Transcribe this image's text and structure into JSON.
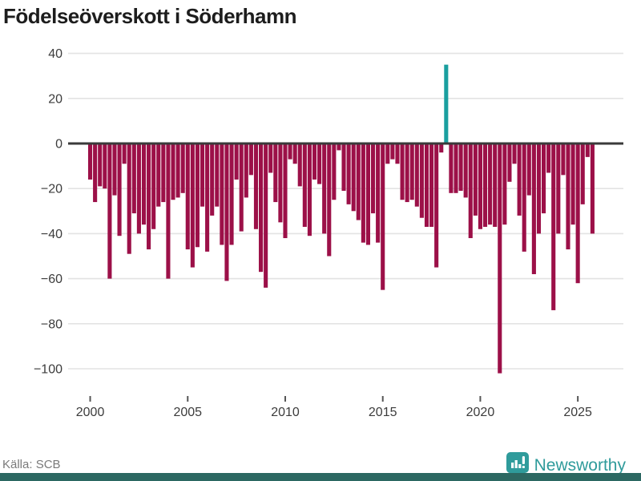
{
  "title": "Födelseöverskott i Söderhamn",
  "source": "Källa: SCB",
  "brand": {
    "name": "Newsworthy"
  },
  "colors": {
    "bar_negative": "#9c1048",
    "bar_positive": "#1a9f9f",
    "zero_axis": "#3a3a3a",
    "grid": "#e3e3e3",
    "tick_mark": "#555555",
    "tick_text": "#3c3c3c",
    "title_text": "#1d1d1d",
    "source_text": "#7a7a7a",
    "brand_teal": "#2f9b9b",
    "footer_strip": "#2c6862",
    "background": "#ffffff"
  },
  "y_tick_labels": [
    "40",
    "20",
    "0",
    "−20",
    "−40",
    "−60",
    "−80",
    "−100"
  ],
  "x_tick_labels": [
    "2000",
    "2005",
    "2010",
    "2015",
    "2020",
    "2025"
  ],
  "chart_data": {
    "type": "bar",
    "title": "Födelseöverskott i Söderhamn",
    "xlabel": "",
    "ylabel": "",
    "frequency": "quarterly",
    "start": "2000-Q1",
    "end": "2025-Q4",
    "values": [
      -16,
      -26,
      -19,
      -20,
      -60,
      -23,
      -41,
      -9,
      -49,
      -31,
      -40,
      -36,
      -47,
      -38,
      -28,
      -26,
      -60,
      -25,
      -24,
      -22,
      -47,
      -55,
      -46,
      -28,
      -48,
      -32,
      -28,
      -45,
      -61,
      -45,
      -16,
      -39,
      -24,
      -14,
      -38,
      -57,
      -64,
      -13,
      -26,
      -35,
      -42,
      -7,
      -9,
      -19,
      -37,
      -41,
      -16,
      -18,
      -40,
      -50,
      -25,
      -3,
      -21,
      -27,
      -30,
      -34,
      -44,
      -45,
      -31,
      -44,
      -65,
      -9,
      -7,
      -9,
      -25,
      -26,
      -25,
      -28,
      -33,
      -37,
      -37,
      -55,
      -4,
      35,
      -22,
      -22,
      -21,
      -24,
      -42,
      -32,
      -38,
      -37,
      -36,
      -37,
      -102,
      -36,
      -17,
      -9,
      -32,
      -48,
      -23,
      -58,
      -40,
      -31,
      -13,
      -74,
      -40,
      -14,
      -47,
      -36,
      -62,
      -27,
      -6,
      -40
    ],
    "highlight": {
      "period": "2018-Q2",
      "index": 73,
      "value": 35
    },
    "yticks": [
      40,
      20,
      0,
      -20,
      -40,
      -60,
      -80,
      -100
    ],
    "xticks": [
      2000,
      2005,
      2010,
      2015,
      2020,
      2025
    ],
    "ylim": [
      -110,
      42
    ],
    "grid": "horizontal",
    "legend": "none",
    "source": "Källa: SCB"
  }
}
